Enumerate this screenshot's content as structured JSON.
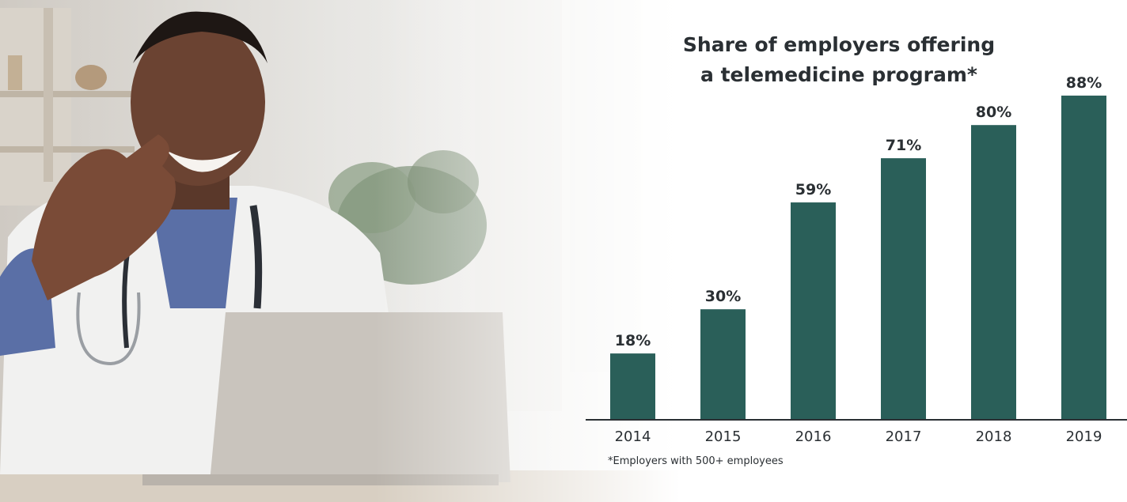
{
  "colors": {
    "bar": "#2a5f59",
    "text": "#2a2f33",
    "baseline": "#2a2f33"
  },
  "photo": {
    "description_icon": "doctor-waving-at-laptop-photo"
  },
  "chart_data": {
    "type": "bar",
    "title": "Share of employers offering a telemedicine program*",
    "title_lines": [
      "Share of employers offering",
      "a telemedicine program*"
    ],
    "categories": [
      "2014",
      "2015",
      "2016",
      "2017",
      "2018",
      "2019"
    ],
    "values": [
      18,
      30,
      59,
      71,
      80,
      88
    ],
    "value_labels": [
      "18%",
      "30%",
      "59%",
      "71%",
      "80%",
      "88%"
    ],
    "ylim": [
      0,
      100
    ],
    "xlabel": "",
    "ylabel": "",
    "grid": false,
    "legend": "none",
    "footnote": "*Employers with 500+ employees"
  }
}
